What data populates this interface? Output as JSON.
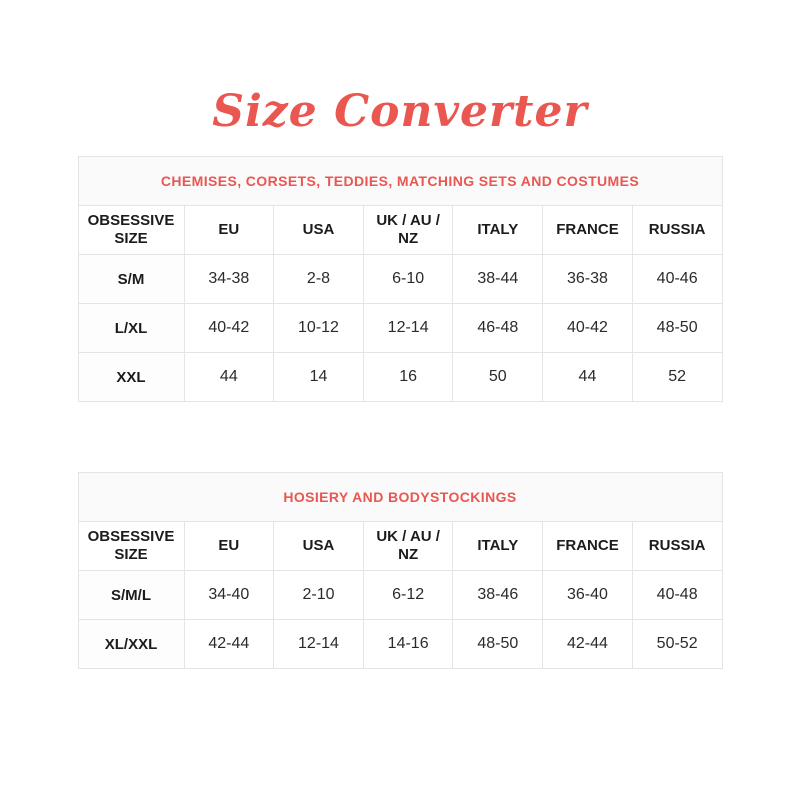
{
  "page": {
    "title": "Size Converter",
    "accent_color": "#ea5650",
    "border_color": "#e4e4e4"
  },
  "tables": [
    {
      "title": "CHEMISES, CORSETS, TEDDIES, MATCHING SETS AND COSTUMES",
      "columns": [
        "OBSESSIVE SIZE",
        "EU",
        "USA",
        "UK / AU / NZ",
        "ITALY",
        "FRANCE",
        "RUSSIA"
      ],
      "rows": [
        [
          "S/M",
          "34-38",
          "2-8",
          "6-10",
          "38-44",
          "36-38",
          "40-46"
        ],
        [
          "L/XL",
          "40-42",
          "10-12",
          "12-14",
          "46-48",
          "40-42",
          "48-50"
        ],
        [
          "XXL",
          "44",
          "14",
          "16",
          "50",
          "44",
          "52"
        ]
      ]
    },
    {
      "title": "HOSIERY AND BODYSTOCKINGS",
      "columns": [
        "OBSESSIVE SIZE",
        "EU",
        "USA",
        "UK / AU / NZ",
        "ITALY",
        "FRANCE",
        "RUSSIA"
      ],
      "rows": [
        [
          "S/M/L",
          "34-40",
          "2-10",
          "6-12",
          "38-46",
          "36-40",
          "40-48"
        ],
        [
          "XL/XXL",
          "42-44",
          "12-14",
          "14-16",
          "48-50",
          "42-44",
          "50-52"
        ]
      ]
    }
  ]
}
